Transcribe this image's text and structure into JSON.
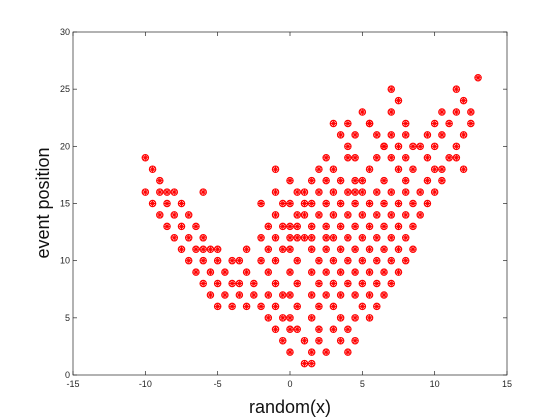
{
  "chart_data": {
    "type": "scatter",
    "title": "",
    "xlabel": "random(x)",
    "ylabel": "event position",
    "xlim": [
      -15,
      15
    ],
    "ylim": [
      0,
      30
    ],
    "xticks": [
      -15,
      -10,
      -5,
      0,
      5,
      10,
      15
    ],
    "yticks": [
      0,
      5,
      10,
      15,
      20,
      25,
      30
    ],
    "xtick_labels": [
      "-15",
      "-10",
      "-5",
      "0",
      "5",
      "10",
      "15"
    ],
    "ytick_labels": [
      "0",
      "5",
      "10",
      "15",
      "20",
      "25",
      "30"
    ],
    "grid": false,
    "marker": "asterisk-circle",
    "marker_color": "#ff0000",
    "points": [
      [
        -10.0,
        19
      ],
      [
        -9.5,
        18
      ],
      [
        -9.0,
        17
      ],
      [
        -8.5,
        16
      ],
      [
        -9.0,
        16
      ],
      [
        -10.0,
        16
      ],
      [
        -8.0,
        16
      ],
      [
        -9.5,
        15
      ],
      [
        -8.5,
        15
      ],
      [
        -7.5,
        15
      ],
      [
        -9.0,
        14
      ],
      [
        -8.0,
        14
      ],
      [
        -7.0,
        14
      ],
      [
        -8.5,
        13
      ],
      [
        -7.5,
        13
      ],
      [
        -6.5,
        13
      ],
      [
        -8.0,
        12
      ],
      [
        -7.0,
        12
      ],
      [
        -6.0,
        12
      ],
      [
        -7.5,
        11
      ],
      [
        -6.5,
        11
      ],
      [
        -5.5,
        11
      ],
      [
        -6.0,
        10
      ],
      [
        -5.0,
        10
      ],
      [
        -7.0,
        10
      ],
      [
        -6.5,
        9
      ],
      [
        -5.5,
        9
      ],
      [
        -4.5,
        9
      ],
      [
        -6.0,
        8
      ],
      [
        -5.0,
        8
      ],
      [
        -4.0,
        8
      ],
      [
        -5.5,
        7
      ],
      [
        -4.5,
        7
      ],
      [
        -3.5,
        7
      ],
      [
        -5.0,
        6
      ],
      [
        -4.0,
        6
      ],
      [
        -3.0,
        6
      ],
      [
        -6.0,
        16
      ],
      [
        -6.0,
        11
      ],
      [
        -5.0,
        11
      ],
      [
        -4.0,
        10
      ],
      [
        -3.5,
        10
      ],
      [
        -3.0,
        9
      ],
      [
        -3.0,
        11
      ],
      [
        -2.5,
        8
      ],
      [
        -2.0,
        12
      ],
      [
        -2.0,
        10
      ],
      [
        -3.5,
        8
      ],
      [
        -2.5,
        7
      ],
      [
        -2.0,
        6
      ],
      [
        -1.5,
        5
      ],
      [
        -1.0,
        6
      ],
      [
        -1.0,
        4
      ],
      [
        -1.5,
        7
      ],
      [
        -0.5,
        5
      ],
      [
        0.0,
        4
      ],
      [
        -0.5,
        3
      ],
      [
        0.0,
        2
      ],
      [
        -0.5,
        7
      ],
      [
        -1.0,
        8
      ],
      [
        -1.5,
        9
      ],
      [
        -1.0,
        10
      ],
      [
        -0.5,
        11
      ],
      [
        -1.0,
        12
      ],
      [
        -0.5,
        13
      ],
      [
        -1.0,
        14
      ],
      [
        -1.5,
        11
      ],
      [
        -1.5,
        13
      ],
      [
        -2.0,
        15
      ],
      [
        -1.0,
        16
      ],
      [
        -0.5,
        15
      ],
      [
        -1.0,
        18
      ],
      [
        0.0,
        17
      ],
      [
        0.5,
        16
      ],
      [
        1.0,
        16
      ],
      [
        1.5,
        17
      ],
      [
        2.0,
        18
      ],
      [
        2.5,
        19
      ],
      [
        0.0,
        15
      ],
      [
        0.5,
        14
      ],
      [
        0.0,
        13
      ],
      [
        0.5,
        13
      ],
      [
        0.0,
        12
      ],
      [
        0.5,
        12
      ],
      [
        1.0,
        12
      ],
      [
        0.0,
        11
      ],
      [
        0.5,
        10
      ],
      [
        0.0,
        9
      ],
      [
        0.5,
        8
      ],
      [
        0.0,
        7
      ],
      [
        0.5,
        6
      ],
      [
        0.0,
        5
      ],
      [
        0.5,
        4
      ],
      [
        1.0,
        3
      ],
      [
        1.5,
        2
      ],
      [
        1.0,
        1
      ],
      [
        1.5,
        1
      ],
      [
        2.0,
        3
      ],
      [
        2.5,
        2
      ],
      [
        2.0,
        4
      ],
      [
        1.5,
        5
      ],
      [
        2.0,
        6
      ],
      [
        1.5,
        7
      ],
      [
        2.0,
        8
      ],
      [
        1.5,
        9
      ],
      [
        2.0,
        10
      ],
      [
        1.5,
        11
      ],
      [
        1.0,
        14
      ],
      [
        1.5,
        13
      ],
      [
        1.0,
        15
      ],
      [
        1.5,
        15
      ],
      [
        2.0,
        14
      ],
      [
        2.5,
        15
      ],
      [
        2.0,
        16
      ],
      [
        3.0,
        16
      ],
      [
        2.5,
        17
      ],
      [
        3.0,
        18
      ],
      [
        3.5,
        17
      ],
      [
        4.0,
        19
      ],
      [
        3.0,
        22
      ],
      [
        3.5,
        21
      ],
      [
        4.0,
        20
      ],
      [
        4.0,
        22
      ],
      [
        4.5,
        21
      ],
      [
        4.5,
        19
      ],
      [
        4.5,
        17
      ],
      [
        4.0,
        16
      ],
      [
        4.5,
        15
      ],
      [
        5.0,
        23
      ],
      [
        5.5,
        22
      ],
      [
        6.0,
        21
      ],
      [
        6.5,
        20
      ],
      [
        6.0,
        19
      ],
      [
        5.5,
        18
      ],
      [
        5.0,
        17
      ],
      [
        5.0,
        16
      ],
      [
        5.5,
        15
      ],
      [
        5.0,
        14
      ],
      [
        5.5,
        13
      ],
      [
        5.0,
        12
      ],
      [
        5.5,
        11
      ],
      [
        5.0,
        10
      ],
      [
        4.5,
        9
      ],
      [
        5.0,
        8
      ],
      [
        4.5,
        7
      ],
      [
        5.0,
        6
      ],
      [
        4.5,
        5
      ],
      [
        4.0,
        4
      ],
      [
        4.5,
        3
      ],
      [
        4.0,
        2
      ],
      [
        3.5,
        3
      ],
      [
        3.0,
        4
      ],
      [
        3.5,
        5
      ],
      [
        3.0,
        6
      ],
      [
        2.5,
        7
      ],
      [
        3.0,
        8
      ],
      [
        2.5,
        9
      ],
      [
        3.0,
        10
      ],
      [
        2.5,
        11
      ],
      [
        3.0,
        12
      ],
      [
        2.5,
        13
      ],
      [
        3.0,
        14
      ],
      [
        3.5,
        13
      ],
      [
        3.5,
        11
      ],
      [
        3.5,
        9
      ],
      [
        3.5,
        7
      ],
      [
        4.0,
        8
      ],
      [
        4.0,
        10
      ],
      [
        4.0,
        12
      ],
      [
        4.0,
        14
      ],
      [
        4.5,
        13
      ],
      [
        4.5,
        11
      ],
      [
        5.5,
        9
      ],
      [
        5.5,
        7
      ],
      [
        6.0,
        8
      ],
      [
        6.0,
        10
      ],
      [
        6.0,
        12
      ],
      [
        6.0,
        14
      ],
      [
        6.0,
        16
      ],
      [
        6.5,
        15
      ],
      [
        6.5,
        13
      ],
      [
        6.5,
        11
      ],
      [
        6.5,
        17
      ],
      [
        6.0,
        6
      ],
      [
        5.5,
        5
      ],
      [
        6.5,
        7
      ],
      [
        6.5,
        9
      ],
      [
        7.0,
        8
      ],
      [
        7.0,
        10
      ],
      [
        7.0,
        12
      ],
      [
        7.0,
        14
      ],
      [
        7.0,
        16
      ],
      [
        7.5,
        15
      ],
      [
        7.5,
        13
      ],
      [
        7.5,
        11
      ],
      [
        7.5,
        9
      ],
      [
        8.0,
        10
      ],
      [
        8.0,
        12
      ],
      [
        8.0,
        14
      ],
      [
        8.0,
        16
      ],
      [
        8.5,
        15
      ],
      [
        8.5,
        13
      ],
      [
        8.5,
        11
      ],
      [
        8.0,
        17
      ],
      [
        8.5,
        18
      ],
      [
        7.5,
        18
      ],
      [
        7.0,
        19
      ],
      [
        7.5,
        20
      ],
      [
        8.5,
        20
      ],
      [
        8.0,
        21
      ],
      [
        8.0,
        19
      ],
      [
        7.0,
        21
      ],
      [
        7.0,
        23
      ],
      [
        7.5,
        24
      ],
      [
        7.0,
        25
      ],
      [
        8.0,
        22
      ],
      [
        9.0,
        20
      ],
      [
        9.0,
        16
      ],
      [
        9.5,
        17
      ],
      [
        9.5,
        15
      ],
      [
        9.0,
        14
      ],
      [
        10.0,
        16
      ],
      [
        9.5,
        19
      ],
      [
        9.5,
        21
      ],
      [
        10.0,
        20
      ],
      [
        10.0,
        22
      ],
      [
        10.5,
        21
      ],
      [
        10.5,
        23
      ],
      [
        11.0,
        22
      ],
      [
        11.0,
        19
      ],
      [
        10.5,
        18
      ],
      [
        11.5,
        20
      ],
      [
        12.0,
        18
      ],
      [
        11.5,
        23
      ],
      [
        12.0,
        24
      ],
      [
        12.0,
        21
      ],
      [
        12.5,
        22
      ],
      [
        12.5,
        23
      ],
      [
        11.5,
        25
      ],
      [
        13.0,
        26
      ],
      [
        11.5,
        19
      ],
      [
        10.0,
        18
      ],
      [
        10.5,
        17
      ],
      [
        6.5,
        20
      ],
      [
        5.5,
        22
      ],
      [
        4.5,
        16
      ],
      [
        3.5,
        15
      ],
      [
        2.5,
        12
      ],
      [
        1.5,
        12
      ]
    ]
  }
}
